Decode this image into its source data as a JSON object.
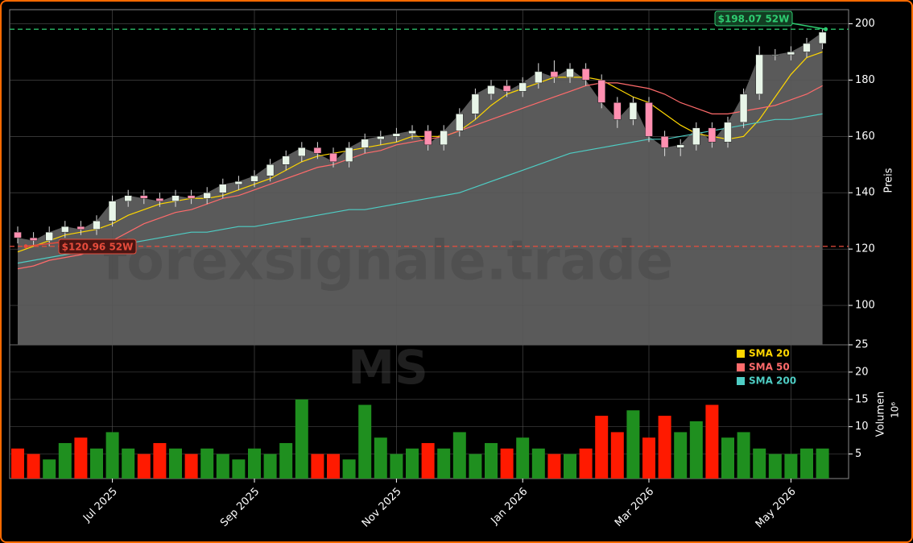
{
  "chart_data": {
    "type": "candlestick",
    "categories": [
      null,
      null,
      null,
      null,
      null,
      null,
      "Jul 2025",
      null,
      null,
      null,
      null,
      null,
      null,
      null,
      null,
      "Sep 2025",
      null,
      null,
      null,
      null,
      null,
      null,
      null,
      null,
      "Nov 2025",
      null,
      null,
      null,
      null,
      null,
      null,
      null,
      "Jan 2026",
      null,
      null,
      null,
      null,
      null,
      null,
      null,
      "Mar 2026",
      null,
      null,
      null,
      null,
      null,
      null,
      null,
      null,
      "May 2026",
      null,
      null
    ],
    "open": [
      126,
      124,
      123,
      126,
      128,
      127,
      130,
      137,
      139,
      138,
      137,
      139,
      138,
      140,
      143,
      144,
      146,
      150,
      153,
      156,
      154,
      151,
      156,
      159,
      160,
      161,
      162,
      157,
      162,
      168,
      175,
      178,
      176,
      179,
      183,
      181,
      184,
      180,
      172,
      166,
      172,
      160,
      156,
      157,
      163,
      158,
      165,
      175,
      189,
      189,
      190,
      193
    ],
    "high": [
      128,
      126,
      128,
      130,
      130,
      132,
      139,
      141,
      141,
      140,
      141,
      141,
      142,
      145,
      146,
      148,
      152,
      155,
      158,
      158,
      156,
      158,
      161,
      162,
      163,
      164,
      164,
      164,
      170,
      177,
      180,
      180,
      181,
      186,
      187,
      186,
      186,
      182,
      174,
      174,
      174,
      162,
      159,
      165,
      165,
      167,
      177,
      192,
      191,
      192,
      195,
      198
    ],
    "low": [
      122,
      121,
      121,
      124,
      125,
      125,
      128,
      135,
      136,
      135,
      135,
      136,
      136,
      138,
      141,
      142,
      144,
      148,
      151,
      152,
      149,
      149,
      154,
      157,
      158,
      159,
      155,
      155,
      160,
      166,
      173,
      174,
      174,
      177,
      179,
      179,
      178,
      170,
      163,
      164,
      158,
      153,
      153,
      155,
      156,
      156,
      163,
      173,
      187,
      187,
      188,
      191
    ],
    "close": [
      124,
      123,
      126,
      128,
      127,
      130,
      137,
      139,
      138,
      137,
      139,
      138,
      140,
      143,
      144,
      146,
      150,
      153,
      156,
      154,
      151,
      156,
      159,
      160,
      161,
      162,
      157,
      162,
      168,
      175,
      178,
      176,
      179,
      183,
      181,
      184,
      180,
      172,
      166,
      172,
      160,
      156,
      157,
      163,
      158,
      165,
      175,
      189,
      189,
      190,
      193,
      197
    ],
    "volume": [
      6,
      5,
      4,
      7,
      8,
      6,
      9,
      6,
      5,
      7,
      6,
      5,
      6,
      5,
      4,
      6,
      5,
      7,
      15,
      5,
      5,
      4,
      14,
      8,
      5,
      6,
      7,
      6,
      9,
      5,
      7,
      6,
      8,
      6,
      5,
      5,
      6,
      12,
      9,
      13,
      8,
      12,
      9,
      11,
      14,
      8,
      9,
      6,
      5,
      5,
      6,
      6
    ],
    "up_color": "#e8f5e8",
    "down_color": "#ff8fb0",
    "volume_up_color": "#1f8f1f",
    "volume_down_color": "#ff1a00",
    "area_color": "#5f5f5f",
    "series": [
      {
        "name": "SMA 20",
        "color": "#ffd700",
        "values": [
          119,
          121,
          123,
          125,
          126,
          127,
          129,
          132,
          134,
          136,
          137,
          138,
          138,
          139,
          141,
          143,
          145,
          148,
          151,
          153,
          154,
          155,
          156,
          157,
          158,
          160,
          160,
          160,
          162,
          166,
          171,
          175,
          177,
          179,
          181,
          181,
          181,
          180,
          177,
          174,
          172,
          168,
          164,
          161,
          160,
          159,
          160,
          166,
          174,
          182,
          188,
          190
        ]
      },
      {
        "name": "SMA 50",
        "color": "#ff6b6b",
        "values": [
          113,
          114,
          116,
          117,
          118,
          120,
          123,
          126,
          129,
          131,
          133,
          134,
          136,
          138,
          139,
          141,
          143,
          145,
          147,
          149,
          150,
          152,
          154,
          155,
          157,
          158,
          159,
          160,
          162,
          164,
          166,
          168,
          170,
          172,
          174,
          176,
          178,
          179,
          179,
          178,
          177,
          175,
          172,
          170,
          168,
          168,
          169,
          170,
          171,
          173,
          175,
          178
        ]
      },
      {
        "name": "SMA 200",
        "color": "#4ecdc4",
        "values": [
          115,
          116,
          117,
          118,
          119,
          120,
          121,
          122,
          123,
          124,
          125,
          126,
          126,
          127,
          128,
          128,
          129,
          130,
          131,
          132,
          133,
          134,
          134,
          135,
          136,
          137,
          138,
          139,
          140,
          142,
          144,
          146,
          148,
          150,
          152,
          154,
          155,
          156,
          157,
          158,
          159,
          159,
          160,
          161,
          162,
          163,
          164,
          165,
          166,
          166,
          167,
          168
        ]
      }
    ],
    "reference_lines": [
      {
        "value": 198.07,
        "label": "$198.07 52W",
        "color": "#2ecc71"
      },
      {
        "value": 120.96,
        "label": "$120.96 52W",
        "color": "#e74c3c"
      }
    ],
    "ylabel": "Preis",
    "ylim": [
      86,
      205
    ],
    "yticks": [
      100,
      120,
      140,
      160,
      180,
      200
    ],
    "volume_ylabel": "Volumen",
    "volume_scale_label": "10⁶",
    "volume_ylim": [
      0.5,
      25
    ],
    "volume_yticks": [
      5,
      10,
      15,
      20,
      25
    ],
    "grid": true,
    "legend": "upper right",
    "watermark": "forexsignale.trade",
    "symbol": "MS"
  }
}
